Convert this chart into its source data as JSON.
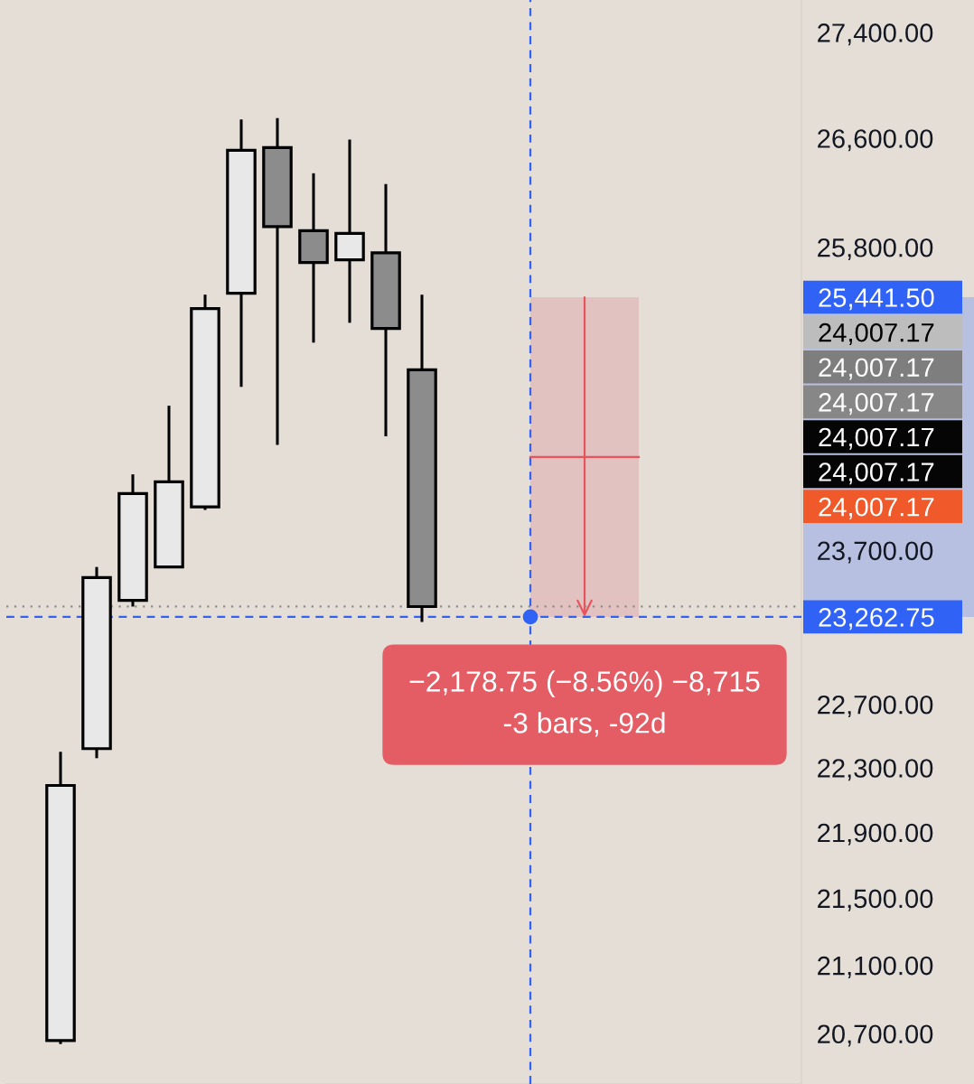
{
  "chart_data": {
    "type": "candlestick",
    "categories": [
      null,
      null,
      null,
      null,
      null,
      null,
      null,
      null,
      null,
      null,
      null,
      null,
      null,
      null,
      null,
      null,
      null,
      null,
      null,
      null,
      null,
      null
    ],
    "ohlc": [
      null,
      [
        20660,
        22400,
        20640,
        22190
      ],
      [
        22420,
        23590,
        22360,
        23520
      ],
      [
        23370,
        24210,
        23330,
        24080
      ],
      [
        23590,
        24680,
        23590,
        24160
      ],
      [
        23990,
        25460,
        23970,
        25360
      ],
      [
        25470,
        26740,
        24810,
        26510
      ],
      [
        26530,
        26750,
        24410,
        25950
      ],
      [
        25920,
        26340,
        25120,
        25690
      ],
      [
        25710,
        26590,
        25260,
        25900
      ],
      [
        25760,
        26260,
        24470,
        25220
      ],
      [
        24930,
        25460,
        23230,
        23330
      ],
      null,
      null,
      null,
      null,
      null,
      null,
      null,
      null,
      null,
      null
    ],
    "colors": [
      null,
      "#e8e8e8",
      "#e8e8e8",
      "#e8e8e8",
      "#e8e8e8",
      "#e8e8e8",
      "#e8e8e8",
      "#8c8c8c",
      "#8c8c8c",
      "#e8e8e8",
      "#8c8c8c",
      "#8c8c8c",
      null,
      null,
      null,
      null,
      null,
      null,
      null,
      null,
      null,
      null
    ],
    "log": true,
    "ylim": [
      20410,
      27650
    ],
    "yticks": [
      {
        "value": 27400,
        "label": "27,400.00"
      },
      {
        "value": 26600,
        "label": "26,600.00"
      },
      {
        "value": 25800,
        "label": "25,800.00"
      },
      {
        "value": 23700,
        "label": "23,700.00"
      },
      {
        "value": 22700,
        "label": "22,700.00"
      },
      {
        "value": 22300,
        "label": "22,300.00"
      },
      {
        "value": 21900,
        "label": "21,900.00"
      },
      {
        "value": 21500,
        "label": "21,500.00"
      },
      {
        "value": 21100,
        "label": "21,100.00"
      },
      {
        "value": 20700,
        "label": "20,700.00"
      }
    ],
    "tick_labels": "y",
    "ref_lines": [
      {
        "axis": "y",
        "value": 23330,
        "color": "#8c8c8c",
        "line_style": "dotted"
      },
      {
        "axis": "y",
        "value": 23262.75,
        "label": "23,262.75",
        "color": "#2f62f5",
        "line_style": "dashed"
      }
    ],
    "bands": [
      {
        "axis": "y",
        "from": 23262.75,
        "to": 25441.5,
        "color": "#e2c2c0"
      }
    ],
    "annotations": [
      "25,441.50",
      "24,007.17",
      "24,007.17",
      "24,007.17",
      "24,007.17",
      "24,007.17",
      "24,007.17",
      "−2,178.75 (−8.56%) −8,715\n-3 bars, -92d"
    ]
  }
}
